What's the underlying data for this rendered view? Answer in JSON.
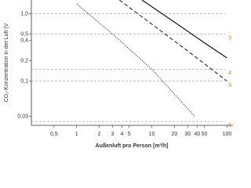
{
  "chart_data": {
    "type": "line",
    "x_label": "Außenluft pro Person [m³/h]",
    "y_label": "CO₂-Konzentration in der Luft (V",
    "xscale": "log",
    "yscale": "log",
    "xlim": [
      0.25,
      120
    ],
    "ylim": [
      0.022,
      1.6
    ],
    "xticks": [
      {
        "value": 0.5,
        "label": "0,5"
      },
      1,
      2,
      3,
      4,
      5,
      10,
      20,
      30,
      40,
      50,
      100
    ],
    "yticks": [
      {
        "value": 1,
        "label": "1,0"
      },
      {
        "value": 0.5,
        "label": "0,5"
      },
      {
        "value": 0.4,
        "label": "0,4"
      },
      {
        "value": 0.2,
        "label": "0,2"
      },
      {
        "value": 0.1,
        "label": "0,1"
      },
      {
        "value": 0.03,
        "label": "0,03"
      }
    ],
    "reference_lines": [
      {
        "value": 1,
        "color": "#999999"
      },
      {
        "value": 0.5,
        "label": "3",
        "color": "#999999",
        "label_color": "#e07b24"
      },
      {
        "value": 0.15,
        "label": "4",
        "color": "#999999",
        "label_color": "#e07b24"
      },
      {
        "value": 0.1,
        "label": "5",
        "color": "#999999",
        "label_color": "#e07b24"
      },
      {
        "value": 0.025,
        "label": "6",
        "color": "#999999",
        "label_color": "#e07b24"
      }
    ],
    "series": [
      {
        "style": "solid",
        "color": "#111111",
        "x": [
          7.4,
          20,
          50,
          100
        ],
        "values": [
          1.6,
          0.75,
          0.37,
          0.22
        ]
      },
      {
        "style": "dashed",
        "color": "#111111",
        "x": [
          3.7,
          10,
          30,
          100
        ],
        "values": [
          1.6,
          0.7,
          0.28,
          0.1
        ]
      },
      {
        "style": "dotted",
        "color": "#111111",
        "x": [
          1,
          3,
          10,
          37
        ],
        "values": [
          1.4,
          0.5,
          0.15,
          0.03
        ]
      }
    ]
  }
}
